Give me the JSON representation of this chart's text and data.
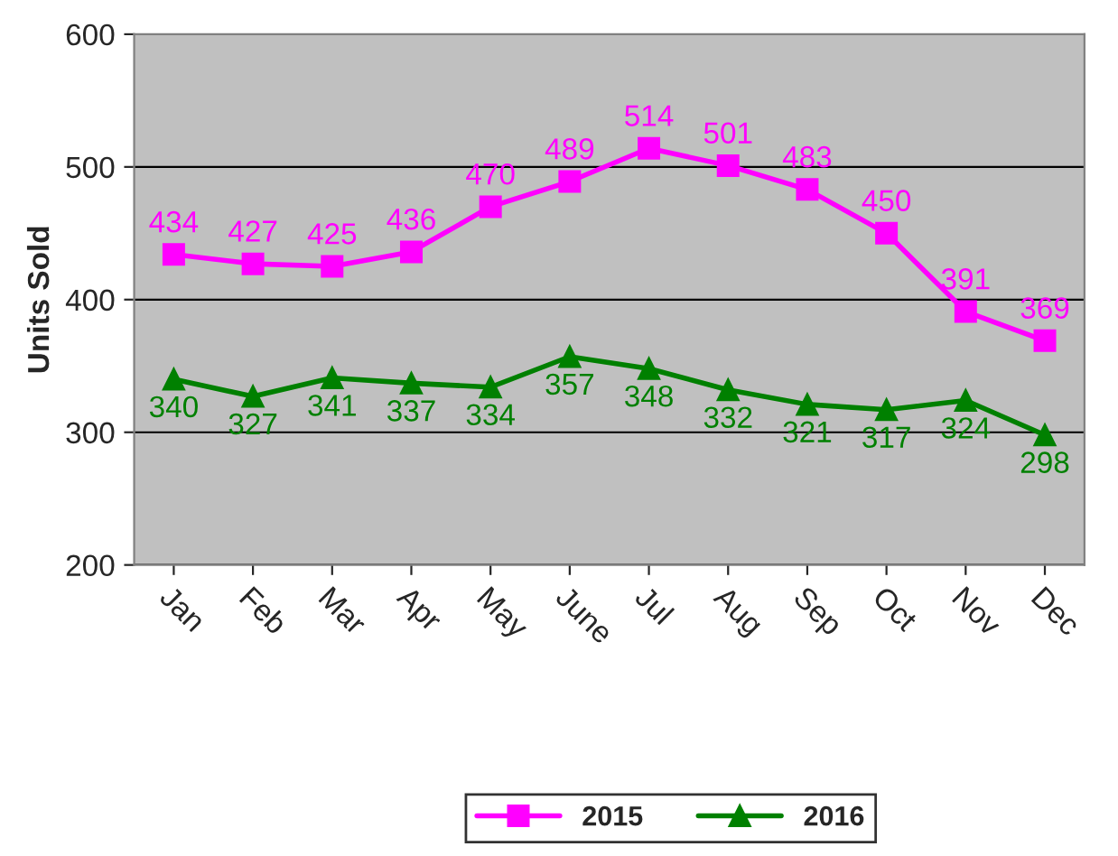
{
  "chart_data": {
    "type": "line",
    "ylabel": "Units Sold",
    "categories": [
      "Jan",
      "Feb",
      "Mar",
      "Apr",
      "May",
      "June",
      "Jul",
      "Aug",
      "Sep",
      "Oct",
      "Nov",
      "Dec"
    ],
    "series": [
      {
        "name": "2015",
        "color": "#ff00ff",
        "marker": "square",
        "values": [
          434,
          427,
          425,
          436,
          470,
          489,
          514,
          501,
          483,
          450,
          391,
          369
        ]
      },
      {
        "name": "2016",
        "color": "#008000",
        "marker": "triangle",
        "values": [
          340,
          327,
          341,
          337,
          334,
          357,
          348,
          332,
          321,
          317,
          324,
          298
        ]
      }
    ],
    "ylim": [
      200,
      600
    ],
    "yticks": [
      200,
      300,
      400,
      500,
      600
    ],
    "grid": "y",
    "legend": "bottom",
    "data_labels": true,
    "line_style": "solid"
  }
}
